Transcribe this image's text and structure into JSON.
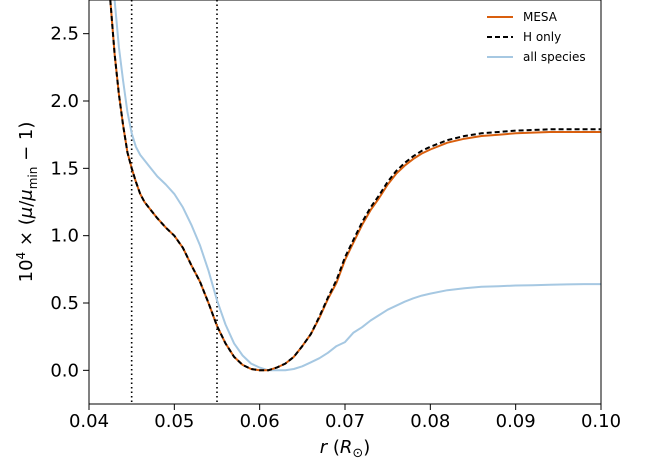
{
  "chart_data": {
    "type": "line",
    "xlabel": "r (R⊙)",
    "ylabel": "10^4 × (μ/μmin − 1)",
    "xlim": [
      0.04,
      0.1
    ],
    "ylim": [
      -0.25,
      2.75
    ],
    "xticks": [
      0.04,
      0.05,
      0.06,
      0.07,
      0.08,
      0.09,
      0.1
    ],
    "xtick_labels": [
      "0.04",
      "0.05",
      "0.06",
      "0.07",
      "0.08",
      "0.09",
      "0.10"
    ],
    "yticks": [
      0.0,
      0.5,
      1.0,
      1.5,
      2.0,
      2.5
    ],
    "ytick_labels": [
      "0.0",
      "0.5",
      "1.0",
      "1.5",
      "2.0",
      "2.5"
    ],
    "vertical_lines": [
      0.045,
      0.055
    ],
    "legend_position": "top-right",
    "grid": false,
    "series": [
      {
        "name": "MESA",
        "color": "#d95f0e",
        "style": "solid",
        "x": [
          0.0425,
          0.043,
          0.0435,
          0.044,
          0.0445,
          0.045,
          0.0455,
          0.046,
          0.0465,
          0.047,
          0.048,
          0.049,
          0.05,
          0.051,
          0.052,
          0.053,
          0.054,
          0.055,
          0.056,
          0.057,
          0.058,
          0.059,
          0.06,
          0.061,
          0.062,
          0.063,
          0.064,
          0.065,
          0.066,
          0.067,
          0.068,
          0.069,
          0.07,
          0.071,
          0.072,
          0.073,
          0.074,
          0.075,
          0.076,
          0.077,
          0.078,
          0.079,
          0.08,
          0.082,
          0.084,
          0.086,
          0.088,
          0.09,
          0.092,
          0.094,
          0.096,
          0.098,
          0.1
        ],
        "y": [
          2.75,
          2.35,
          2.05,
          1.82,
          1.62,
          1.5,
          1.4,
          1.31,
          1.25,
          1.21,
          1.13,
          1.06,
          1.0,
          0.91,
          0.78,
          0.66,
          0.5,
          0.33,
          0.2,
          0.1,
          0.04,
          0.01,
          0.0,
          0.0,
          0.02,
          0.05,
          0.1,
          0.18,
          0.27,
          0.39,
          0.53,
          0.65,
          0.82,
          0.95,
          1.08,
          1.19,
          1.28,
          1.38,
          1.46,
          1.52,
          1.57,
          1.61,
          1.64,
          1.69,
          1.72,
          1.74,
          1.75,
          1.76,
          1.765,
          1.77,
          1.77,
          1.77,
          1.77
        ]
      },
      {
        "name": "H only",
        "color": "#000000",
        "style": "dashed",
        "x": [
          0.0425,
          0.043,
          0.0435,
          0.044,
          0.0445,
          0.045,
          0.0455,
          0.046,
          0.0465,
          0.047,
          0.048,
          0.049,
          0.05,
          0.051,
          0.052,
          0.053,
          0.054,
          0.055,
          0.056,
          0.057,
          0.058,
          0.059,
          0.06,
          0.061,
          0.062,
          0.063,
          0.064,
          0.065,
          0.066,
          0.067,
          0.068,
          0.069,
          0.07,
          0.071,
          0.072,
          0.073,
          0.074,
          0.075,
          0.076,
          0.077,
          0.078,
          0.079,
          0.08,
          0.082,
          0.084,
          0.086,
          0.088,
          0.09,
          0.092,
          0.094,
          0.096,
          0.098,
          0.1
        ],
        "y": [
          2.75,
          2.35,
          2.05,
          1.82,
          1.62,
          1.5,
          1.4,
          1.31,
          1.25,
          1.21,
          1.13,
          1.06,
          1.0,
          0.91,
          0.78,
          0.66,
          0.5,
          0.33,
          0.2,
          0.1,
          0.04,
          0.01,
          0.0,
          0.0,
          0.02,
          0.05,
          0.1,
          0.18,
          0.27,
          0.4,
          0.54,
          0.67,
          0.84,
          0.97,
          1.1,
          1.21,
          1.3,
          1.4,
          1.48,
          1.54,
          1.59,
          1.63,
          1.66,
          1.71,
          1.74,
          1.76,
          1.77,
          1.78,
          1.785,
          1.79,
          1.79,
          1.79,
          1.79
        ]
      },
      {
        "name": "all species",
        "color": "#a6c8e2",
        "style": "solid",
        "x": [
          0.043,
          0.0435,
          0.044,
          0.0445,
          0.045,
          0.0455,
          0.046,
          0.047,
          0.048,
          0.049,
          0.05,
          0.051,
          0.052,
          0.053,
          0.054,
          0.055,
          0.056,
          0.057,
          0.058,
          0.059,
          0.06,
          0.061,
          0.062,
          0.063,
          0.064,
          0.065,
          0.066,
          0.067,
          0.068,
          0.069,
          0.07,
          0.071,
          0.072,
          0.073,
          0.074,
          0.075,
          0.076,
          0.077,
          0.078,
          0.079,
          0.08,
          0.082,
          0.084,
          0.086,
          0.088,
          0.09,
          0.092,
          0.094,
          0.096,
          0.098,
          0.1
        ],
        "y": [
          2.75,
          2.4,
          2.15,
          1.92,
          1.76,
          1.66,
          1.6,
          1.52,
          1.44,
          1.38,
          1.31,
          1.21,
          1.08,
          0.93,
          0.74,
          0.52,
          0.34,
          0.2,
          0.11,
          0.05,
          0.02,
          0.0,
          0.0,
          0.0,
          0.01,
          0.03,
          0.06,
          0.09,
          0.13,
          0.18,
          0.21,
          0.28,
          0.32,
          0.37,
          0.41,
          0.45,
          0.48,
          0.51,
          0.535,
          0.555,
          0.57,
          0.595,
          0.61,
          0.62,
          0.625,
          0.63,
          0.632,
          0.635,
          0.638,
          0.64,
          0.64
        ]
      }
    ]
  }
}
